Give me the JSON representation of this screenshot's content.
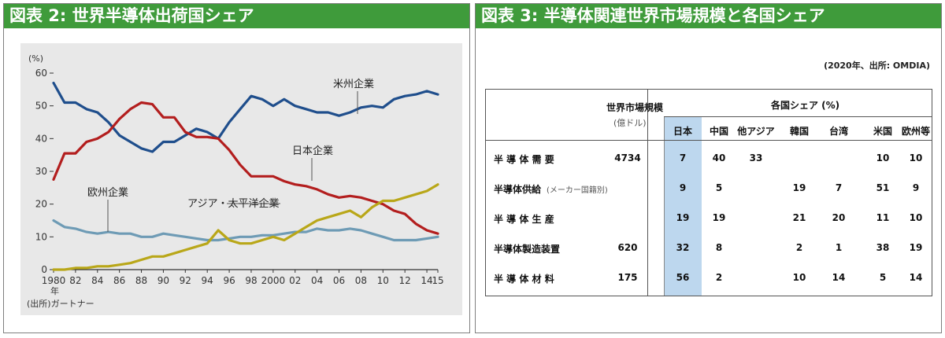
{
  "left_panel": {
    "title": "図表 2: 世界半導体出荷国シェア"
  },
  "right_panel": {
    "title": "図表 3: 半導体関連世界市場規模と各国シェア",
    "note": "(2020年、出所: OMDIA)"
  },
  "chart_data": [
    {
      "type": "line",
      "title": "",
      "y_unit": "(%)",
      "source": "(出所)ガートナー",
      "x_suffix": "年",
      "ylim": [
        0,
        60
      ],
      "y_ticks": [
        0,
        10,
        20,
        30,
        40,
        50,
        60
      ],
      "x_ticks": [
        1980,
        1982,
        1984,
        1986,
        1988,
        1990,
        1992,
        1994,
        1996,
        1998,
        2000,
        2002,
        2004,
        2006,
        2008,
        2010,
        2012,
        2014,
        2015
      ],
      "x_tick_labels": [
        "1980",
        "82",
        "84",
        "86",
        "88",
        "90",
        "92",
        "94",
        "96",
        "98",
        "2000",
        "02",
        "04",
        "06",
        "08",
        "10",
        "12",
        "14",
        "15"
      ],
      "x": [
        1980,
        1981,
        1982,
        1983,
        1984,
        1985,
        1986,
        1987,
        1988,
        1989,
        1990,
        1991,
        1992,
        1993,
        1994,
        1995,
        1996,
        1997,
        1998,
        1999,
        2000,
        2001,
        2002,
        2003,
        2004,
        2005,
        2006,
        2007,
        2008,
        2009,
        2010,
        2011,
        2012,
        2013,
        2014,
        2015
      ],
      "series": [
        {
          "name": "米州企業",
          "color": "#1f4e8c",
          "values": [
            57,
            51,
            51,
            49,
            48,
            45,
            41,
            39,
            37,
            36,
            39,
            39,
            41,
            43,
            42,
            40,
            45,
            49,
            53,
            52,
            50,
            52,
            50,
            49,
            48,
            48,
            47,
            48,
            49.5,
            50,
            49.5,
            52,
            53,
            53.5,
            54.5,
            53.5
          ]
        },
        {
          "name": "日本企業",
          "color": "#b31e1e",
          "values": [
            27.5,
            35.5,
            35.5,
            39,
            40,
            42,
            46,
            49,
            51,
            50.5,
            46.5,
            46.5,
            42,
            40.5,
            40.5,
            40,
            36.5,
            32,
            28.5,
            28.5,
            28.5,
            27,
            26,
            25.5,
            24.5,
            23,
            22,
            22.5,
            22,
            21,
            20,
            18,
            17,
            14,
            12,
            11
          ]
        },
        {
          "name": "欧州企業",
          "color": "#6e9bb5",
          "values": [
            15,
            13,
            12.5,
            11.5,
            11,
            11.5,
            11,
            11,
            10,
            10,
            11,
            10.5,
            10,
            9.5,
            9,
            9,
            9.5,
            10,
            10,
            10.5,
            10.5,
            11,
            11.5,
            11.5,
            12.5,
            12,
            12,
            12.5,
            12,
            11,
            10,
            9,
            9,
            9,
            9.5,
            10
          ]
        },
        {
          "name": "アジア・太平洋企業",
          "color": "#b9a719",
          "values": [
            0,
            0,
            0.5,
            0.5,
            1,
            1,
            1.5,
            2,
            3,
            4,
            4,
            5,
            6,
            7,
            8,
            12,
            9,
            8,
            8,
            9,
            10,
            9,
            11,
            13,
            15,
            16,
            17,
            18,
            16,
            19,
            21,
            21,
            22,
            23,
            24,
            26
          ]
        }
      ]
    },
    {
      "type": "table",
      "row_header_label": "",
      "market_size_header": "世界市場規模",
      "market_size_unit": "(億ドル)",
      "share_header": "各国シェア",
      "share_unit": "(%)",
      "columns": [
        "日本",
        "中国",
        "他アジア",
        "韓国",
        "台湾",
        "米国",
        "欧州等"
      ],
      "rows": [
        {
          "label": "半 導 体 需 要",
          "label_sub": "",
          "market": "4734",
          "shares": [
            "7",
            "40",
            "33",
            "",
            "",
            "10",
            "10"
          ]
        },
        {
          "label": "半導体供給",
          "label_sub": "(メーカー国籍別)",
          "market": "",
          "shares": [
            "9",
            "5",
            "",
            "19",
            "7",
            "51",
            "9"
          ]
        },
        {
          "label": "半 導 体 生 産",
          "label_sub": "",
          "market": "",
          "shares": [
            "19",
            "19",
            "",
            "21",
            "20",
            "11",
            "10"
          ]
        },
        {
          "label": "半導体製造装置",
          "label_sub": "",
          "market": "620",
          "shares": [
            "32",
            "8",
            "",
            "2",
            "1",
            "38",
            "19"
          ]
        },
        {
          "label": "半 導 体 材 料",
          "label_sub": "",
          "market": "175",
          "shares": [
            "56",
            "2",
            "",
            "10",
            "14",
            "5",
            "14"
          ]
        }
      ],
      "highlight_column": "日本",
      "highlight_color": "#bdd7ee"
    }
  ]
}
